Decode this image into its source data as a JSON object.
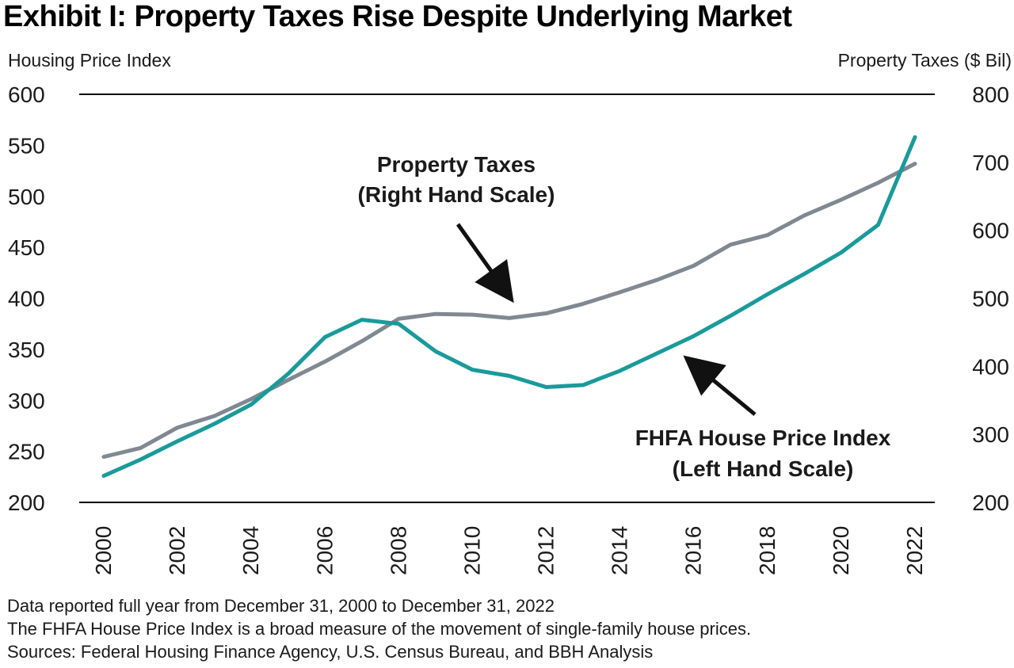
{
  "title": "Exhibit I: Property Taxes Rise Despite Underlying Market",
  "notes": [
    "Data reported full year from December 31, 2000 to December 31, 2022",
    "The FHFA House Price Index is a broad measure of the movement of single-family house prices.",
    "Sources: Federal Housing Finance Agency, U.S. Census Bureau, and BBH Analysis"
  ],
  "chart_data": {
    "type": "line",
    "title": "Exhibit I: Property Taxes Rise Despite Underlying Market",
    "xlabel": "",
    "ylabel_left": "Housing Price Index",
    "ylabel_right": "Property Taxes ($ Bil)",
    "x": [
      2000,
      2001,
      2002,
      2003,
      2004,
      2005,
      2006,
      2007,
      2008,
      2009,
      2010,
      2011,
      2012,
      2013,
      2014,
      2015,
      2016,
      2017,
      2018,
      2019,
      2020,
      2021,
      2022
    ],
    "x_tick_labels": [
      "2000",
      "2002",
      "2004",
      "2006",
      "2008",
      "2010",
      "2012",
      "2014",
      "2016",
      "2018",
      "2020",
      "2022"
    ],
    "ylim_left": [
      200,
      600
    ],
    "yticks_left": [
      200,
      250,
      300,
      350,
      400,
      450,
      500,
      550,
      600
    ],
    "ylim_right": [
      200,
      800
    ],
    "yticks_right": [
      200,
      300,
      400,
      500,
      600,
      700,
      800
    ],
    "series": [
      {
        "name": "Property Taxes",
        "axis": "right",
        "color": "#808891",
        "values": [
          267,
          280,
          310,
          327,
          352,
          380,
          407,
          437,
          470,
          477,
          476,
          471,
          478,
          492,
          509,
          527,
          548,
          579,
          593,
          622,
          645,
          670,
          698
        ]
      },
      {
        "name": "FHFA House Price Index",
        "axis": "left",
        "color": "#1a9a9a",
        "values": [
          226,
          242,
          260,
          277,
          296,
          326,
          362,
          379,
          375,
          348,
          330,
          324,
          313,
          315,
          329,
          346,
          363,
          383,
          404,
          424,
          445,
          472,
          558
        ]
      }
    ],
    "annotations": [
      {
        "target": "Property Taxes",
        "lines": [
          "Property Taxes",
          "(Right Hand Scale)"
        ]
      },
      {
        "target": "FHFA House Price Index",
        "lines": [
          "FHFA House Price Index",
          "(Left Hand Scale)"
        ]
      }
    ],
    "grid": "top and bottom boundary lines only",
    "legend": "none (inline annotations with arrows)"
  }
}
